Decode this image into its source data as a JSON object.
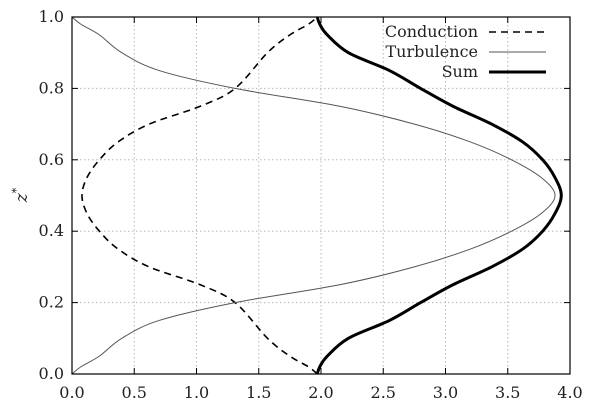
{
  "chart_data": {
    "type": "line",
    "xlabel": "",
    "ylabel": "z*",
    "xlim": [
      0.0,
      4.0
    ],
    "ylim": [
      0.0,
      1.0
    ],
    "x_ticks": [
      "0.0",
      "0.5",
      "1.0",
      "1.5",
      "2.0",
      "2.5",
      "3.0",
      "3.5",
      "4.0"
    ],
    "y_ticks": [
      "0.0",
      "0.2",
      "0.4",
      "0.6",
      "0.8",
      "1.0"
    ],
    "grid": true,
    "legend_position": "top-right",
    "series": [
      {
        "name": "Conduction",
        "style": "dashed",
        "color": "#000000",
        "points": [
          {
            "x": 1.97,
            "y": 0.0
          },
          {
            "x": 1.9,
            "y": 0.02
          },
          {
            "x": 1.75,
            "y": 0.05
          },
          {
            "x": 1.57,
            "y": 0.1
          },
          {
            "x": 1.31,
            "y": 0.2
          },
          {
            "x": 1.03,
            "y": 0.25
          },
          {
            "x": 0.62,
            "y": 0.3
          },
          {
            "x": 0.37,
            "y": 0.35
          },
          {
            "x": 0.22,
            "y": 0.4
          },
          {
            "x": 0.12,
            "y": 0.45
          },
          {
            "x": 0.08,
            "y": 0.5
          },
          {
            "x": 0.12,
            "y": 0.55
          },
          {
            "x": 0.22,
            "y": 0.6
          },
          {
            "x": 0.37,
            "y": 0.65
          },
          {
            "x": 0.62,
            "y": 0.7
          },
          {
            "x": 1.03,
            "y": 0.75
          },
          {
            "x": 1.31,
            "y": 0.8
          },
          {
            "x": 1.57,
            "y": 0.9
          },
          {
            "x": 1.75,
            "y": 0.95
          },
          {
            "x": 1.9,
            "y": 0.98
          },
          {
            "x": 1.97,
            "y": 1.0
          }
        ]
      },
      {
        "name": "Turbulence",
        "style": "solid-thin",
        "color": "#555555",
        "points": [
          {
            "x": 0.0,
            "y": 0.0
          },
          {
            "x": 0.07,
            "y": 0.02
          },
          {
            "x": 0.22,
            "y": 0.05
          },
          {
            "x": 0.4,
            "y": 0.1
          },
          {
            "x": 0.7,
            "y": 0.15
          },
          {
            "x": 1.31,
            "y": 0.2
          },
          {
            "x": 2.15,
            "y": 0.25
          },
          {
            "x": 2.75,
            "y": 0.3
          },
          {
            "x": 3.2,
            "y": 0.35
          },
          {
            "x": 3.53,
            "y": 0.4
          },
          {
            "x": 3.77,
            "y": 0.45
          },
          {
            "x": 3.88,
            "y": 0.5
          },
          {
            "x": 3.77,
            "y": 0.55
          },
          {
            "x": 3.53,
            "y": 0.6
          },
          {
            "x": 3.2,
            "y": 0.65
          },
          {
            "x": 2.75,
            "y": 0.7
          },
          {
            "x": 2.15,
            "y": 0.75
          },
          {
            "x": 1.31,
            "y": 0.8
          },
          {
            "x": 0.7,
            "y": 0.85
          },
          {
            "x": 0.4,
            "y": 0.9
          },
          {
            "x": 0.22,
            "y": 0.95
          },
          {
            "x": 0.07,
            "y": 0.98
          },
          {
            "x": 0.0,
            "y": 1.0
          }
        ]
      },
      {
        "name": "Sum",
        "style": "solid-thick",
        "color": "#000000",
        "points": [
          {
            "x": 1.97,
            "y": 0.0
          },
          {
            "x": 1.99,
            "y": 0.02
          },
          {
            "x": 2.05,
            "y": 0.05
          },
          {
            "x": 2.22,
            "y": 0.1
          },
          {
            "x": 2.55,
            "y": 0.15
          },
          {
            "x": 2.8,
            "y": 0.2
          },
          {
            "x": 3.06,
            "y": 0.25
          },
          {
            "x": 3.37,
            "y": 0.3
          },
          {
            "x": 3.62,
            "y": 0.35
          },
          {
            "x": 3.78,
            "y": 0.4
          },
          {
            "x": 3.88,
            "y": 0.45
          },
          {
            "x": 3.93,
            "y": 0.5
          },
          {
            "x": 3.88,
            "y": 0.55
          },
          {
            "x": 3.78,
            "y": 0.6
          },
          {
            "x": 3.62,
            "y": 0.65
          },
          {
            "x": 3.37,
            "y": 0.7
          },
          {
            "x": 3.06,
            "y": 0.75
          },
          {
            "x": 2.8,
            "y": 0.8
          },
          {
            "x": 2.55,
            "y": 0.85
          },
          {
            "x": 2.22,
            "y": 0.9
          },
          {
            "x": 2.05,
            "y": 0.95
          },
          {
            "x": 1.99,
            "y": 0.98
          },
          {
            "x": 1.97,
            "y": 1.0
          }
        ]
      }
    ]
  }
}
